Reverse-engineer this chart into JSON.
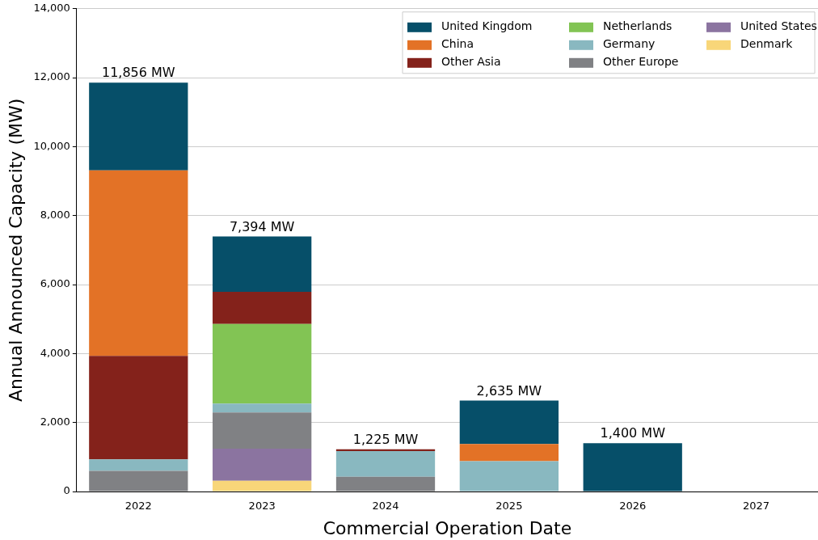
{
  "chart_data": {
    "type": "bar",
    "stacked": true,
    "xlabel": "Commercial Operation Date",
    "ylabel": "Annual Announced Capacity (MW)",
    "categories": [
      "2022",
      "2023",
      "2024",
      "2025",
      "2026",
      "2027"
    ],
    "series": [
      {
        "name": "Denmark",
        "color": "#f8d679",
        "values": [
          null,
          310,
          null,
          null,
          null,
          null
        ]
      },
      {
        "name": "United States",
        "color": "#8b74a0",
        "values": [
          null,
          930,
          null,
          null,
          null,
          null
        ]
      },
      {
        "name": "Other Europe",
        "color": "#808184",
        "values": [
          600,
          1050,
          430,
          null,
          null,
          null
        ]
      },
      {
        "name": "Germany",
        "color": "#89b8c0",
        "values": [
          330,
          260,
          740,
          880,
          null,
          null
        ]
      },
      {
        "name": "Netherlands",
        "color": "#82c454",
        "values": [
          null,
          2310,
          null,
          null,
          null,
          null
        ]
      },
      {
        "name": "Other Asia",
        "color": "#84221b",
        "values": [
          3000,
          930,
          55,
          null,
          null,
          null
        ]
      },
      {
        "name": "China",
        "color": "#e37226",
        "values": [
          5380,
          null,
          null,
          500,
          null,
          null
        ]
      },
      {
        "name": "United Kingdom",
        "color": "#064f69",
        "values": [
          2546,
          1604,
          null,
          1255,
          1400,
          null
        ]
      }
    ],
    "totals": [
      "11,856 MW",
      "7,394 MW",
      "1,225 MW",
      "2,635 MW",
      "1,400 MW",
      null
    ],
    "ylim": [
      0,
      14000
    ],
    "yticks": [
      {
        "value": 0,
        "label": "0"
      },
      {
        "value": 2000,
        "label": "2,000"
      },
      {
        "value": 4000,
        "label": "4,000"
      },
      {
        "value": 6000,
        "label": "6,000"
      },
      {
        "value": 8000,
        "label": "8,000"
      },
      {
        "value": 10000,
        "label": "10,000"
      },
      {
        "value": 12000,
        "label": "12,000"
      },
      {
        "value": 14000,
        "label": "14,000"
      }
    ],
    "grid": "y",
    "legend": "top right"
  }
}
